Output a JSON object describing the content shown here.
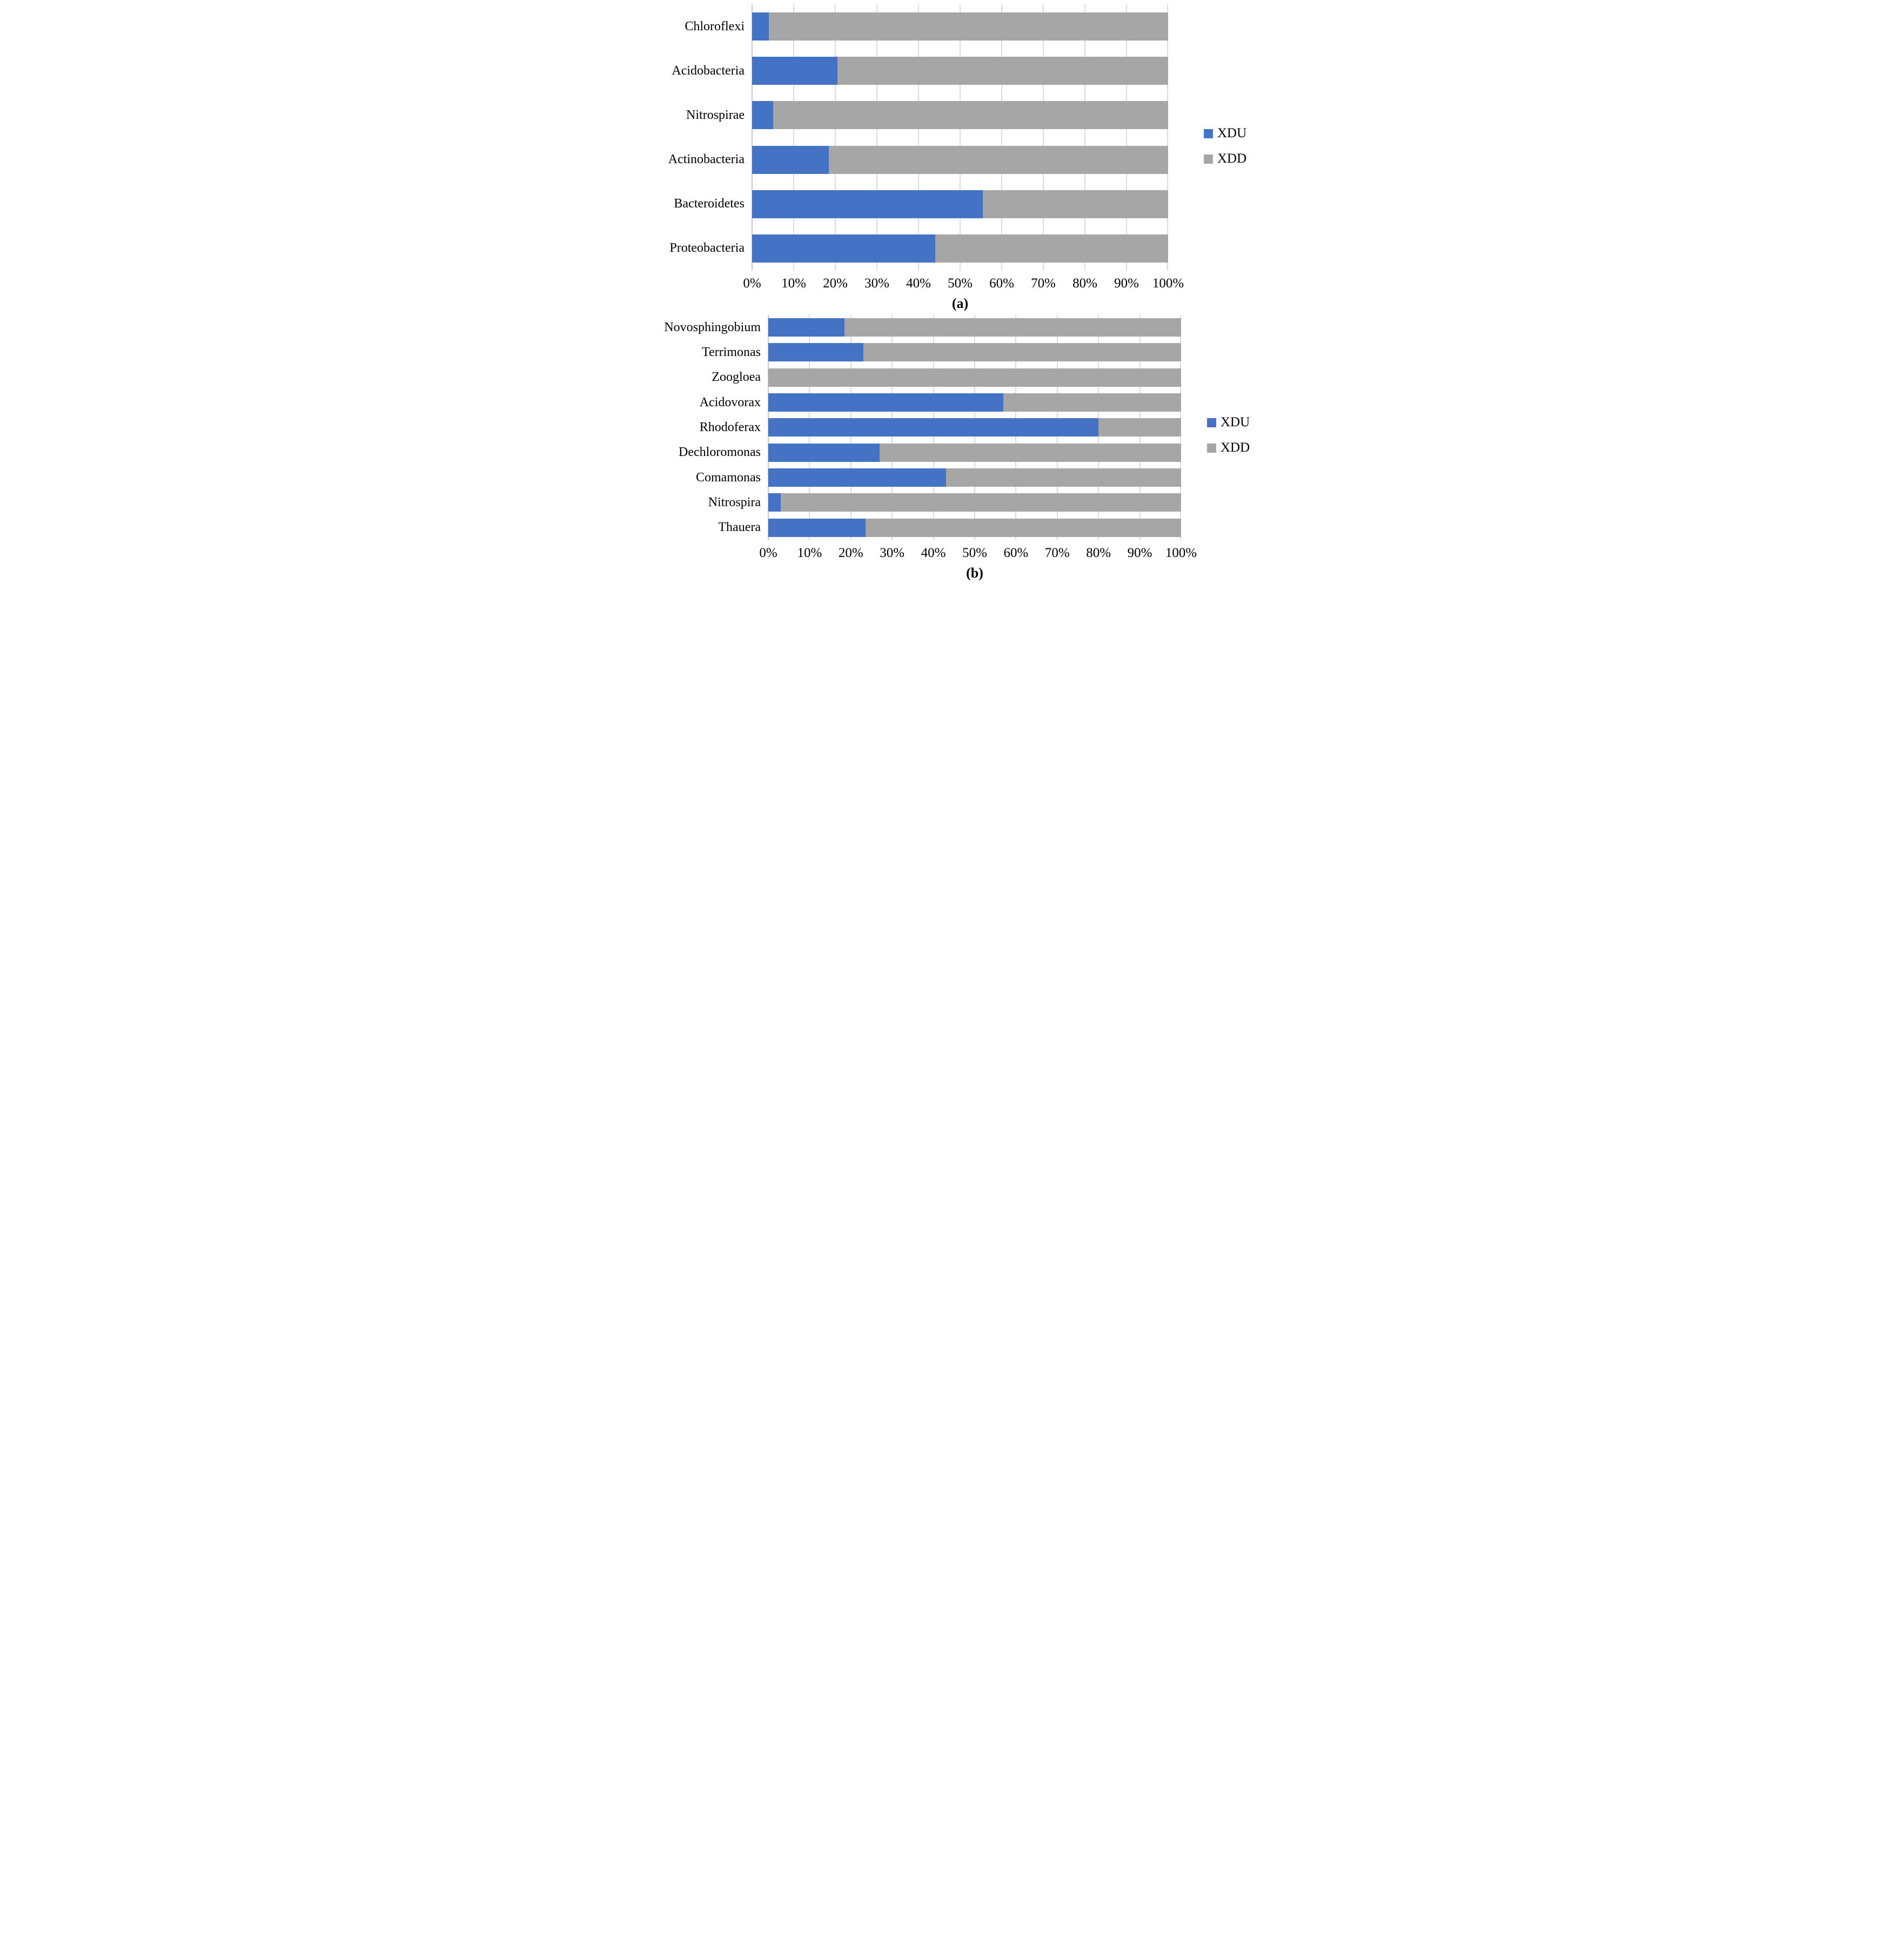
{
  "chart_data": [
    {
      "type": "bar",
      "subtype": "stacked-horizontal-100pct",
      "panel_label": "(a)",
      "categories": [
        "Chloroflexi",
        "Acidobacteria",
        "Nitrospirae",
        "Actinobacteria",
        "Bacteroidetes",
        "Proteobacteria"
      ],
      "series": [
        {
          "name": "XDU",
          "color": "#4472C4",
          "values": [
            4,
            20.5,
            5,
            18.5,
            55.5,
            44
          ]
        },
        {
          "name": "XDD",
          "color": "#A6A6A6",
          "values": [
            96,
            79.5,
            95,
            81.5,
            44.5,
            56
          ]
        }
      ],
      "x_ticks": [
        "0%",
        "10%",
        "20%",
        "30%",
        "40%",
        "50%",
        "60%",
        "70%",
        "80%",
        "90%",
        "100%"
      ],
      "xlim": [
        0,
        100
      ],
      "grid": true,
      "legend_position": "right"
    },
    {
      "type": "bar",
      "subtype": "stacked-horizontal-100pct",
      "panel_label": "(b)",
      "categories": [
        "Novosphingobium",
        "Terrimonas",
        "Zoogloea",
        "Acidovorax",
        "Rhodoferax",
        "Dechloromonas",
        "Comamonas",
        "Nitrospira",
        "Thauera"
      ],
      "series": [
        {
          "name": "XDU",
          "color": "#4472C4",
          "values": [
            18.5,
            23,
            0,
            57,
            80,
            27,
            43,
            3,
            23.5
          ]
        },
        {
          "name": "XDD",
          "color": "#A6A6A6",
          "values": [
            81.5,
            77,
            100,
            43,
            20,
            73,
            57,
            97,
            76.5
          ]
        }
      ],
      "x_ticks": [
        "0%",
        "10%",
        "20%",
        "30%",
        "40%",
        "50%",
        "60%",
        "70%",
        "80%",
        "90%",
        "100%"
      ],
      "xlim": [
        0,
        100
      ],
      "grid": true,
      "legend_position": "right"
    }
  ],
  "colors": {
    "xdu_blue": "#4472C4",
    "xdd_gray": "#A6A6A6",
    "gridline": "#DCDCDC",
    "background": "#FFFFFF",
    "text": "#000000"
  }
}
